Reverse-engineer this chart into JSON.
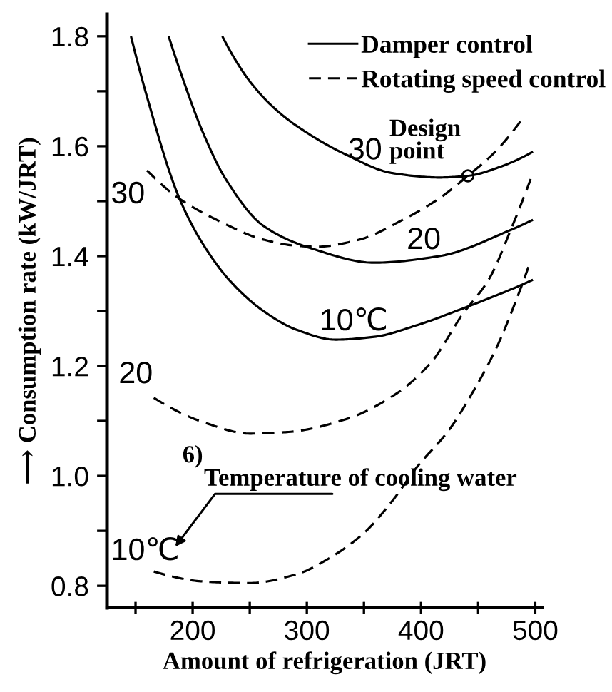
{
  "chart_data": {
    "type": "line",
    "xlabel": "Amount of refrigeration (JRT)",
    "ylabel": "⟶ Consumption rate (kW/JRT)",
    "xlim": [
      125,
      506
    ],
    "ylim": [
      0.76,
      1.84
    ],
    "xticks": [
      {
        "value": 150,
        "label": null
      },
      200,
      {
        "value": 250,
        "label": null
      },
      300,
      {
        "value": 350,
        "label": null
      },
      400,
      {
        "value": 450,
        "label": null
      },
      500
    ],
    "yticks": [
      0.8,
      {
        "value": 0.9,
        "label": null
      },
      {
        "value": 1.0,
        "label": "1.0"
      },
      {
        "value": 1.1,
        "label": null
      },
      1.2,
      {
        "value": 1.3,
        "label": null
      },
      1.4,
      {
        "value": 1.5,
        "label": null
      },
      1.6,
      {
        "value": 1.7,
        "label": null
      },
      1.8
    ],
    "legend": "top right",
    "series": [
      {
        "name": "Damper control",
        "color": "#000000",
        "line_style": "solid",
        "x": [
          226,
          238,
          250,
          270,
          291,
          334,
          375,
          416,
          441,
          470,
          498
        ],
        "values": [
          1.8,
          1.755,
          1.718,
          1.672,
          1.637,
          1.585,
          1.551,
          1.543,
          1.546,
          1.563,
          1.59
        ]
      },
      {
        "color": "#000000",
        "line_style": "solid",
        "x": [
          179,
          191,
          209,
          229,
          262,
          304,
          359,
          416,
          479,
          498
        ],
        "values": [
          1.8,
          1.725,
          1.625,
          1.54,
          1.455,
          1.414,
          1.388,
          1.4,
          1.448,
          1.466
        ]
      },
      {
        "color": "#000000",
        "line_style": "solid",
        "x": [
          146,
          160,
          188,
          209,
          234,
          262,
          291,
          325,
          359,
          396,
          437,
          484,
          498
        ],
        "values": [
          1.8,
          1.69,
          1.507,
          1.422,
          1.352,
          1.3,
          1.266,
          1.248,
          1.253,
          1.274,
          1.305,
          1.344,
          1.357
        ]
      },
      {
        "name": "Rotating speed control",
        "color": "#000000",
        "line_style": "dashed",
        "x": [
          160,
          188,
          221,
          262,
          290,
          309,
          346,
          384,
          416,
          441,
          465,
          487
        ],
        "values": [
          1.556,
          1.505,
          1.466,
          1.43,
          1.419,
          1.417,
          1.43,
          1.466,
          1.505,
          1.546,
          1.59,
          1.645
        ]
      },
      {
        "color": "#000000",
        "line_style": "dashed",
        "x": [
          166,
          209,
          250,
          284,
          334,
          375,
          409,
          435,
          460,
          479,
          496
        ],
        "values": [
          1.142,
          1.098,
          1.077,
          1.08,
          1.103,
          1.145,
          1.207,
          1.29,
          1.36,
          1.45,
          1.54
        ]
      },
      {
        "color": "#000000",
        "line_style": "dashed",
        "x": [
          166,
          209,
          250,
          291,
          321,
          350,
          375,
          396,
          425,
          446,
          466,
          487,
          494
        ],
        "values": [
          0.826,
          0.808,
          0.805,
          0.821,
          0.852,
          0.896,
          0.955,
          1.015,
          1.085,
          1.155,
          1.233,
          1.34,
          1.38
        ]
      },
      {
        "type": "scatter",
        "marker": "circle",
        "color": "#000000",
        "x": [
          441
        ],
        "values": [
          1.546
        ]
      }
    ],
    "annotations": [
      "30",
      "30",
      "Design\npoint",
      "20",
      "10℃",
      "20",
      "10℃",
      "6)",
      "Temperature of cooling water"
    ]
  }
}
